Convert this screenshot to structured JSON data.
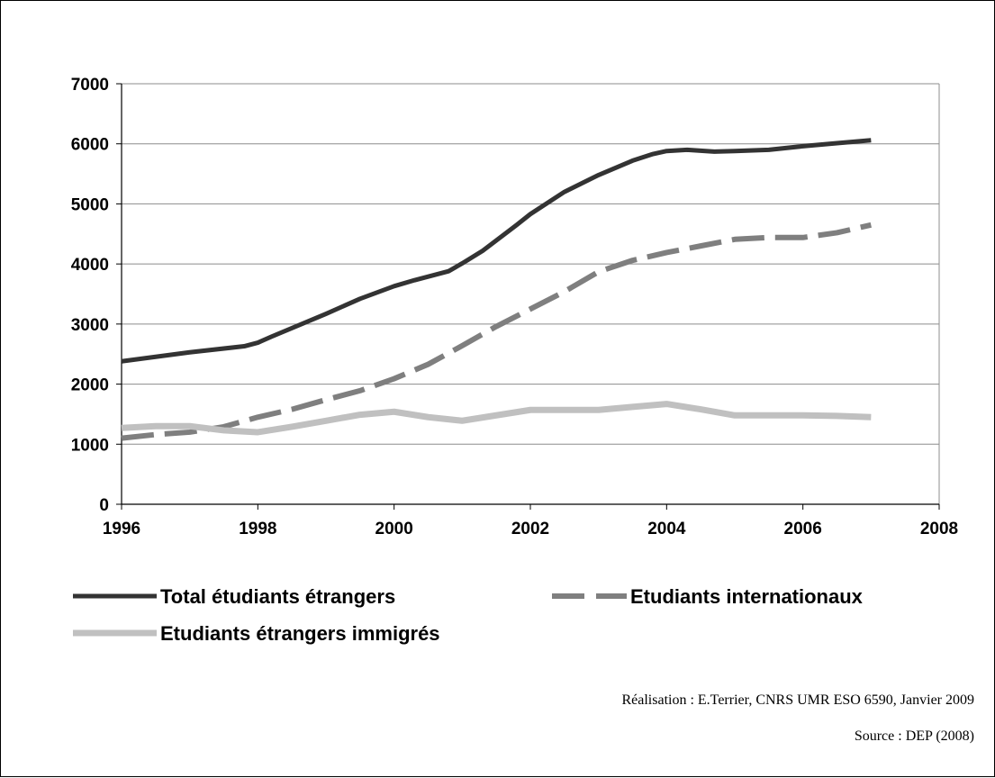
{
  "chart_data": {
    "type": "line",
    "xlim": [
      1996,
      2008
    ],
    "ylim": [
      0,
      7000
    ],
    "x_ticks": [
      1996,
      1998,
      2000,
      2002,
      2004,
      2006,
      2008
    ],
    "y_ticks": [
      0,
      1000,
      2000,
      3000,
      4000,
      5000,
      6000,
      7000
    ],
    "grid": "horizontal",
    "legend_position": "bottom",
    "series": [
      {
        "name": "Total étudiants étrangers",
        "style": "solid",
        "color": "#333333",
        "x": [
          1996,
          1997,
          1997.8,
          1998,
          1998.2,
          1999,
          1999.5,
          2000,
          2000.3,
          2000.8,
          2001,
          2001.3,
          2001.8,
          2002,
          2002.5,
          2003,
          2003.5,
          2003.8,
          2004,
          2004.3,
          2004.7,
          2005,
          2005.5,
          2006,
          2006.5,
          2007
        ],
        "y": [
          2380,
          2530,
          2630,
          2690,
          2790,
          3170,
          3420,
          3630,
          3730,
          3880,
          4010,
          4220,
          4650,
          4830,
          5200,
          5480,
          5720,
          5830,
          5880,
          5900,
          5870,
          5880,
          5900,
          5960,
          6010,
          6060
        ]
      },
      {
        "name": "Etudiants internationaux",
        "style": "dashed",
        "color": "#7f7f7f",
        "x": [
          1996,
          1996.5,
          1997,
          1997.5,
          1998,
          1998.5,
          1999,
          1999.5,
          2000,
          2000.5,
          2001,
          2001.5,
          2002,
          2002.5,
          2003,
          2003.5,
          2004,
          2004.5,
          2005,
          2005.5,
          2006,
          2006.5,
          2007
        ],
        "y": [
          1100,
          1160,
          1200,
          1290,
          1450,
          1580,
          1740,
          1890,
          2090,
          2330,
          2640,
          2960,
          3250,
          3540,
          3870,
          4060,
          4190,
          4300,
          4410,
          4440,
          4440,
          4520,
          4650
        ]
      },
      {
        "name": "Etudiants étrangers immigrés",
        "style": "solid",
        "color": "#c0c0c0",
        "x": [
          1996,
          1996.5,
          1997,
          1997.5,
          1998,
          1998.5,
          1999,
          1999.5,
          2000,
          2000.5,
          2001,
          2001.5,
          2002,
          2002.5,
          2003,
          2003.5,
          2004,
          2004.5,
          2005,
          2005.5,
          2006,
          2006.5,
          2007
        ],
        "y": [
          1270,
          1300,
          1300,
          1230,
          1200,
          1290,
          1390,
          1490,
          1540,
          1450,
          1390,
          1480,
          1570,
          1570,
          1570,
          1620,
          1670,
          1580,
          1480,
          1480,
          1480,
          1470,
          1450
        ]
      }
    ]
  },
  "credits": {
    "realisation": "Réalisation : E.Terrier, CNRS UMR ESO 6590, Janvier 2009",
    "source": "Source : DEP (2008)"
  }
}
